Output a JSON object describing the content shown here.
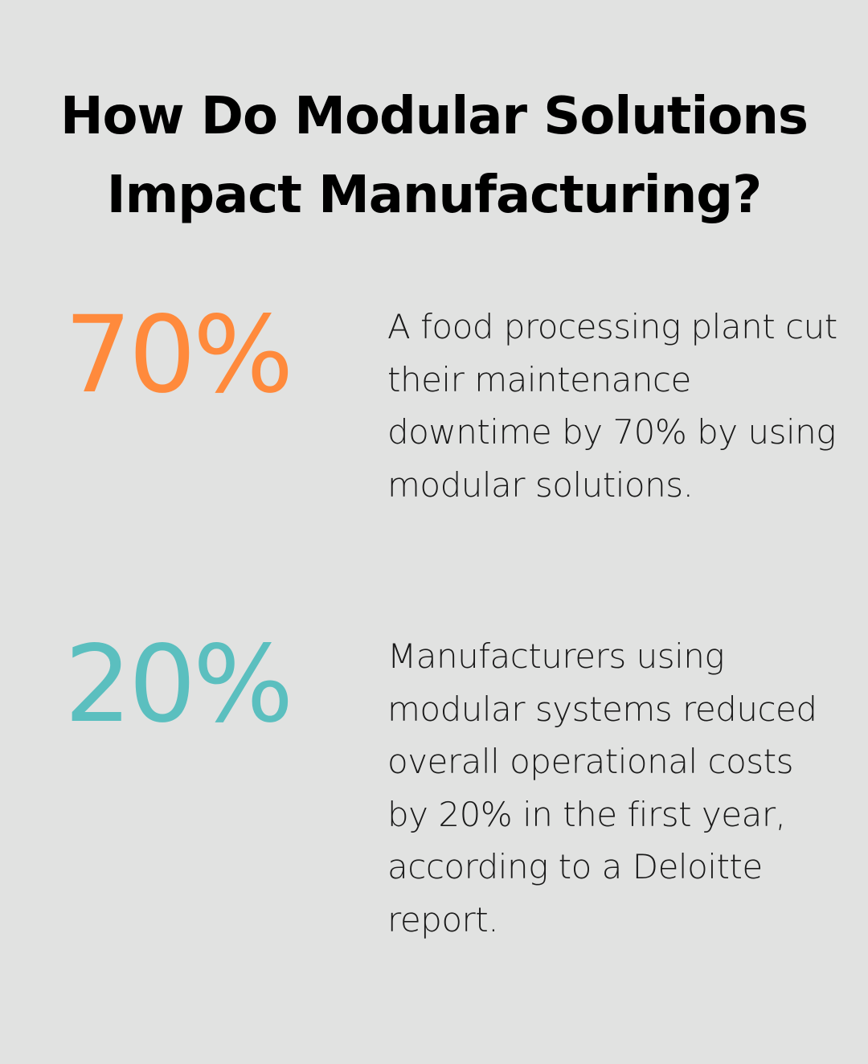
{
  "title": {
    "line1": "How Do Modular Solutions",
    "line2": "Impact Manufacturing?"
  },
  "stats": [
    {
      "value": "70%",
      "color": "#ff8a3c",
      "text": "A food processing plant cut their maintenance downtime by 70% by using modular solutions."
    },
    {
      "value": "20%",
      "color": "#5bbfbf",
      "text": "Manufacturers using modular systems reduced overall operational costs by 20% in the first year, according to a Deloitte report."
    }
  ],
  "colors": {
    "background": "#e1e2e1",
    "title": "#000000",
    "body_text": "#1a1a1a"
  }
}
